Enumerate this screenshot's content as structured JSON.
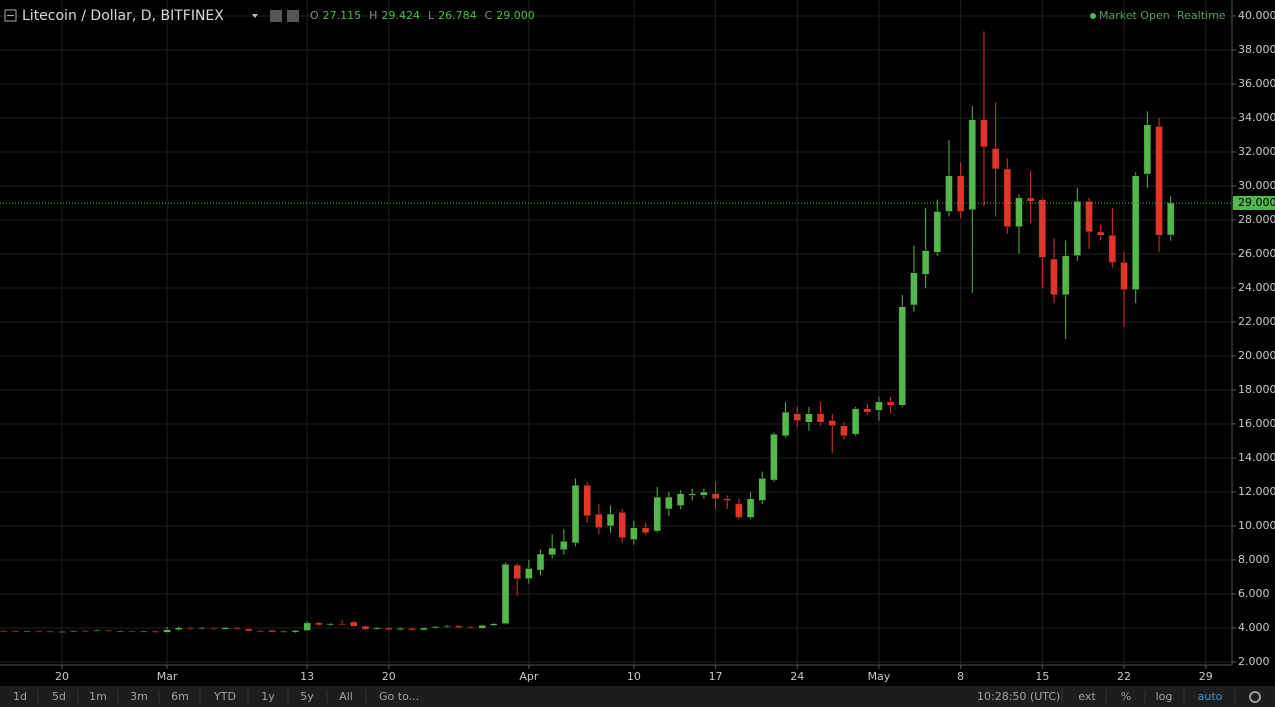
{
  "chart_data": {
    "type": "candlestick",
    "title": "Litecoin / Dollar, D, BITFINEX",
    "categories": [
      "Feb 15",
      "Feb 16",
      "Feb 17",
      "Feb 18",
      "Feb 19",
      "Feb 20",
      "Feb 21",
      "Feb 22",
      "Feb 23",
      "Feb 24",
      "Feb 25",
      "Feb 26",
      "Feb 27",
      "Feb 28",
      "Mar 1",
      "Mar 2",
      "Mar 3",
      "Mar 4",
      "Mar 5",
      "Mar 6",
      "Mar 7",
      "Mar 8",
      "Mar 9",
      "Mar 10",
      "Mar 11",
      "Mar 12",
      "Mar 13",
      "Mar 14",
      "Mar 15",
      "Mar 16",
      "Mar 17",
      "Mar 18",
      "Mar 19",
      "Mar 20",
      "Mar 21",
      "Mar 22",
      "Mar 23",
      "Mar 24",
      "Mar 25",
      "Mar 26",
      "Mar 27",
      "Mar 28",
      "Mar 29",
      "Mar 30",
      "Mar 31",
      "Apr 1",
      "Apr 2",
      "Apr 3",
      "Apr 4",
      "Apr 5",
      "Apr 6",
      "Apr 7",
      "Apr 8",
      "Apr 9",
      "Apr 10",
      "Apr 11",
      "Apr 12",
      "Apr 13",
      "Apr 14",
      "Apr 15",
      "Apr 16",
      "Apr 17",
      "Apr 18",
      "Apr 19",
      "Apr 20",
      "Apr 21",
      "Apr 22",
      "Apr 23",
      "Apr 24",
      "Apr 25",
      "Apr 26",
      "Apr 27",
      "Apr 28",
      "Apr 29",
      "Apr 30",
      "May 1",
      "May 2",
      "May 3",
      "May 4",
      "May 5",
      "May 6",
      "May 7",
      "May 8",
      "May 9",
      "May 10",
      "May 11",
      "May 12",
      "May 13",
      "May 14",
      "May 15",
      "May 16",
      "May 17",
      "May 18",
      "May 19",
      "May 20",
      "May 21",
      "May 22",
      "May 23",
      "May 24",
      "May 25",
      "May 26"
    ],
    "open": [
      3.83,
      3.82,
      3.8,
      3.83,
      3.81,
      3.76,
      3.79,
      3.84,
      3.82,
      3.86,
      3.8,
      3.82,
      3.78,
      3.81,
      3.74,
      3.9,
      4.02,
      3.95,
      3.98,
      3.92,
      4.02,
      3.94,
      3.82,
      3.86,
      3.76,
      3.75,
      3.85,
      4.3,
      4.18,
      4.25,
      4.35,
      4.1,
      3.92,
      4.0,
      3.9,
      3.98,
      3.88,
      4.0,
      4.08,
      4.12,
      4.05,
      3.98,
      4.15,
      4.25,
      7.7,
      6.9,
      7.4,
      8.3,
      8.6,
      9.0,
      12.4,
      10.7,
      10.0,
      10.8,
      9.2,
      9.9,
      9.7,
      11.0,
      11.2,
      11.8,
      11.8,
      11.9,
      11.6,
      11.3,
      10.5,
      11.5,
      12.7,
      15.3,
      16.6,
      16.1,
      16.6,
      16.2,
      15.9,
      15.4,
      16.9,
      16.8,
      17.3,
      17.1,
      23.0,
      24.8,
      26.1,
      28.5,
      30.6,
      28.6,
      33.9,
      32.2,
      31.0,
      27.6,
      29.3,
      29.2,
      25.7,
      23.6,
      25.9,
      29.1,
      27.3,
      27.1,
      25.5,
      23.9,
      30.7,
      33.5,
      27.115
    ],
    "high": [
      3.87,
      3.86,
      3.85,
      3.86,
      3.84,
      3.82,
      3.86,
      3.88,
      3.9,
      3.89,
      3.84,
      3.85,
      3.84,
      3.84,
      4.05,
      4.1,
      4.08,
      4.05,
      4.02,
      4.06,
      4.06,
      3.98,
      3.88,
      3.9,
      3.84,
      3.88,
      4.4,
      4.35,
      4.3,
      4.45,
      4.42,
      4.15,
      4.05,
      4.04,
      4.02,
      4.02,
      4.04,
      4.12,
      4.18,
      4.16,
      4.1,
      4.2,
      4.3,
      7.85,
      7.8,
      8.0,
      8.6,
      9.5,
      9.8,
      12.8,
      12.6,
      11.3,
      11.2,
      11.0,
      10.3,
      10.2,
      12.3,
      12.0,
      12.1,
      12.2,
      12.2,
      12.6,
      11.8,
      11.6,
      12.0,
      13.2,
      15.5,
      17.3,
      17.0,
      17.0,
      17.3,
      16.6,
      16.1,
      17.0,
      17.2,
      17.6,
      17.6,
      23.6,
      26.5,
      28.7,
      29.2,
      32.7,
      31.4,
      34.7,
      39.1,
      34.9,
      31.6,
      29.5,
      30.9,
      29.3,
      26.9,
      26.8,
      29.9,
      29.3,
      27.7,
      28.7,
      26.1,
      30.8,
      34.4,
      34.0,
      29.424
    ],
    "low": [
      3.78,
      3.78,
      3.76,
      3.79,
      3.74,
      3.72,
      3.76,
      3.79,
      3.8,
      3.78,
      3.76,
      3.76,
      3.75,
      3.7,
      3.72,
      3.85,
      3.9,
      3.9,
      3.86,
      3.88,
      3.9,
      3.78,
      3.76,
      3.72,
      3.72,
      3.7,
      3.82,
      4.1,
      4.12,
      4.15,
      4.05,
      3.88,
      3.88,
      3.85,
      3.86,
      3.84,
      3.85,
      3.96,
      4.02,
      3.98,
      3.94,
      3.95,
      4.1,
      4.2,
      5.9,
      6.6,
      7.1,
      8.1,
      8.3,
      8.8,
      10.2,
      9.5,
      9.6,
      9.0,
      8.9,
      9.5,
      9.6,
      10.6,
      11.0,
      11.5,
      11.6,
      11.0,
      11.0,
      10.4,
      10.4,
      11.3,
      12.6,
      15.2,
      15.8,
      15.6,
      15.9,
      14.3,
      15.1,
      15.3,
      16.5,
      16.2,
      16.6,
      17.0,
      22.6,
      24.0,
      25.9,
      28.2,
      28.1,
      23.7,
      28.8,
      28.2,
      27.2,
      26.0,
      27.8,
      24.0,
      23.1,
      21.0,
      25.6,
      26.3,
      26.8,
      25.2,
      21.7,
      23.1,
      29.9,
      26.1,
      26.784
    ],
    "close": [
      3.82,
      3.8,
      3.83,
      3.81,
      3.76,
      3.79,
      3.84,
      3.82,
      3.86,
      3.8,
      3.82,
      3.78,
      3.81,
      3.74,
      3.9,
      4.02,
      3.95,
      3.98,
      3.92,
      4.02,
      3.94,
      3.82,
      3.8,
      3.76,
      3.8,
      3.85,
      4.3,
      4.18,
      4.25,
      4.2,
      4.1,
      3.92,
      4.0,
      3.9,
      3.98,
      3.88,
      4.0,
      4.08,
      4.12,
      4.02,
      3.98,
      4.15,
      4.25,
      7.75,
      6.9,
      7.5,
      8.35,
      8.7,
      9.1,
      12.4,
      10.6,
      9.9,
      10.7,
      9.3,
      9.9,
      9.6,
      11.7,
      11.7,
      11.9,
      11.9,
      12.0,
      11.6,
      11.5,
      10.5,
      11.6,
      12.8,
      15.4,
      16.7,
      16.2,
      16.6,
      16.1,
      15.9,
      15.3,
      16.9,
      16.7,
      17.3,
      17.1,
      22.9,
      24.9,
      26.2,
      28.5,
      30.6,
      28.5,
      33.9,
      32.3,
      31.0,
      27.6,
      29.3,
      29.1,
      25.8,
      23.6,
      25.9,
      29.1,
      27.3,
      27.1,
      25.5,
      23.9,
      30.6,
      33.6,
      27.1,
      29.0
    ],
    "up_color": "#53b74c",
    "down_color": "#e3342a",
    "ylim": [
      1.82,
      40.94
    ],
    "yticks": [
      {
        "value": 2,
        "label": "2.000"
      },
      {
        "value": 4,
        "label": "4.000"
      },
      {
        "value": 6,
        "label": "6.000"
      },
      {
        "value": 8,
        "label": "8.000"
      },
      {
        "value": 10,
        "label": "10.000"
      },
      {
        "value": 12,
        "label": "12.000"
      },
      {
        "value": 14,
        "label": "14.000"
      },
      {
        "value": 16,
        "label": "16.000"
      },
      {
        "value": 18,
        "label": "18.000"
      },
      {
        "value": 20,
        "label": "20.000"
      },
      {
        "value": 22,
        "label": "22.000"
      },
      {
        "value": 24,
        "label": "24.000"
      },
      {
        "value": 26,
        "label": "26.000"
      },
      {
        "value": 28,
        "label": "28.000"
      },
      {
        "value": 30,
        "label": "30.000"
      },
      {
        "value": 32,
        "label": "32.000"
      },
      {
        "value": 34,
        "label": "34.000"
      },
      {
        "value": 36,
        "label": "36.000"
      },
      {
        "value": 38,
        "label": "38.000"
      },
      {
        "value": 40,
        "label": "40.000"
      }
    ],
    "xticks": [
      {
        "value": "Feb 20",
        "label": "20"
      },
      {
        "value": "Mar 1",
        "label": "Mar"
      },
      {
        "value": "Mar 13",
        "label": "13"
      },
      {
        "value": "Mar 20",
        "label": "20"
      },
      {
        "value": "Apr 1",
        "label": "Apr"
      },
      {
        "value": "Apr 10",
        "label": "10"
      },
      {
        "value": "Apr 17",
        "label": "17"
      },
      {
        "value": "Apr 24",
        "label": "24"
      },
      {
        "value": "May 1",
        "label": "May"
      },
      {
        "value": "May 8",
        "label": "8"
      },
      {
        "value": "May 15",
        "label": "15"
      },
      {
        "value": "May 22",
        "label": "22"
      },
      {
        "value": "May 29",
        "label": "29"
      }
    ],
    "grid": true,
    "last_price": {
      "value": 29,
      "label": "29.000"
    },
    "readout": [
      {
        "key": "O",
        "value": 27.115
      },
      {
        "key": "H",
        "value": 29.424
      },
      {
        "key": "L",
        "value": 26.784
      },
      {
        "key": "C",
        "value": 29,
        "label": "29.000"
      }
    ]
  },
  "status": {
    "market": "Market Open",
    "feed": "Realtime"
  },
  "toolbar": {
    "ranges": [
      "1d",
      "5d",
      "1m",
      "3m",
      "6m",
      "YTD",
      "1y",
      "5y",
      "All"
    ],
    "goto": "Go to...",
    "clock": "10:28:50 (UTC)",
    "options": [
      "ext",
      "%",
      "log",
      "auto"
    ]
  }
}
